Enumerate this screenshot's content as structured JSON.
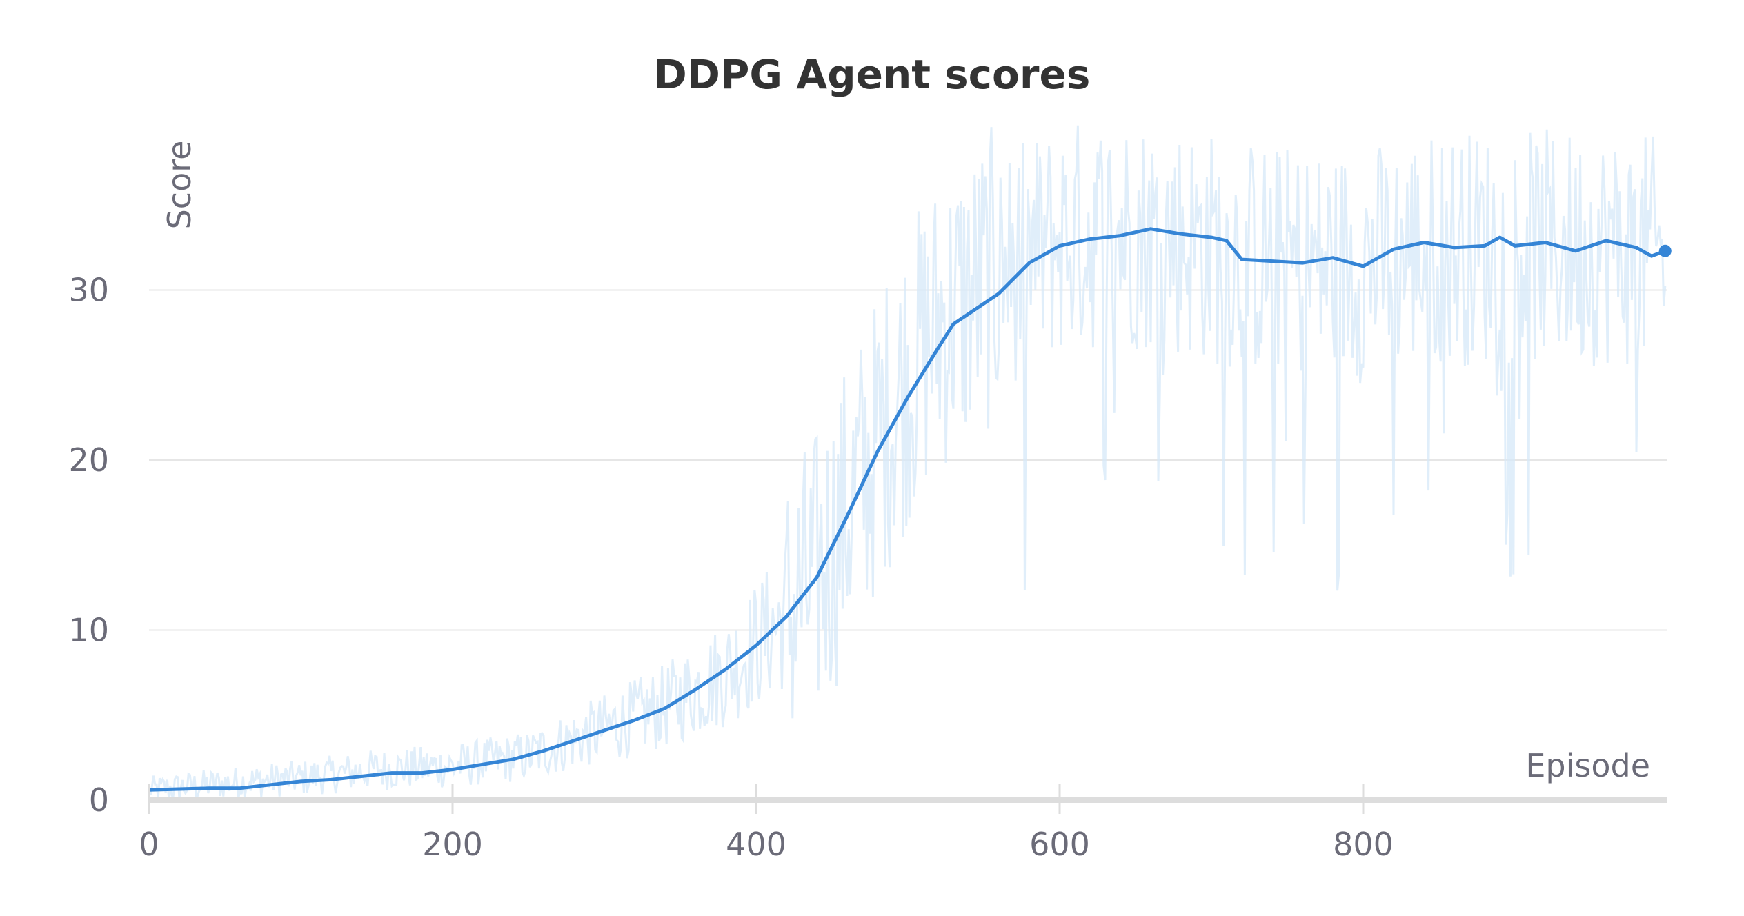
{
  "chart_data": {
    "type": "line",
    "title": "DDPG Agent scores",
    "xlabel": "Episode",
    "ylabel": "Score",
    "xlim": [
      0,
      1000
    ],
    "ylim": [
      0,
      40
    ],
    "x_ticks": [
      0,
      200,
      400,
      600,
      800
    ],
    "y_ticks": [
      0,
      10,
      20,
      30
    ],
    "grid": "horizontal",
    "colors": {
      "average": "#3585d6",
      "raw": "#d6e8f8"
    },
    "series": [
      {
        "style": "raw-noisy",
        "x": [
          0,
          50,
          100,
          150,
          200,
          250,
          300,
          340,
          380,
          420,
          440,
          460,
          480,
          500,
          520,
          540,
          560,
          580,
          600,
          640,
          680,
          720,
          760,
          800,
          840,
          880,
          920,
          960,
          999
        ],
        "y": [
          0.6,
          1.0,
          1.3,
          1.8,
          2.0,
          2.6,
          4.2,
          5.5,
          7.5,
          10.8,
          13.0,
          17.0,
          21.0,
          25.0,
          28.0,
          29.5,
          31.0,
          32.0,
          33.0,
          33.5,
          33.0,
          32.0,
          31.5,
          31.5,
          32.5,
          32.5,
          32.5,
          32.5,
          32.0
        ]
      },
      {
        "style": "moving-average",
        "x": [
          0,
          20,
          40,
          60,
          80,
          100,
          120,
          140,
          160,
          180,
          200,
          220,
          240,
          260,
          280,
          300,
          320,
          340,
          360,
          380,
          400,
          420,
          440,
          460,
          470,
          480,
          500,
          520,
          530,
          540,
          560,
          580,
          600,
          620,
          640,
          660,
          680,
          700,
          710,
          720,
          740,
          760,
          780,
          800,
          820,
          840,
          860,
          880,
          890,
          900,
          920,
          940,
          960,
          980,
          990,
          999
        ],
        "y": [
          0.6,
          0.65,
          0.7,
          0.7,
          0.9,
          1.1,
          1.2,
          1.4,
          1.6,
          1.6,
          1.8,
          2.1,
          2.4,
          2.9,
          3.5,
          4.1,
          4.7,
          5.4,
          6.5,
          7.7,
          9.1,
          10.8,
          13.1,
          16.7,
          18.6,
          20.5,
          23.7,
          26.6,
          28.0,
          28.6,
          29.8,
          31.6,
          32.6,
          33.0,
          33.2,
          33.6,
          33.3,
          33.1,
          32.9,
          31.8,
          31.7,
          31.6,
          31.9,
          31.4,
          32.4,
          32.8,
          32.5,
          32.6,
          33.1,
          32.6,
          32.8,
          32.3,
          32.9,
          32.5,
          32.0,
          32.3
        ]
      }
    ]
  }
}
